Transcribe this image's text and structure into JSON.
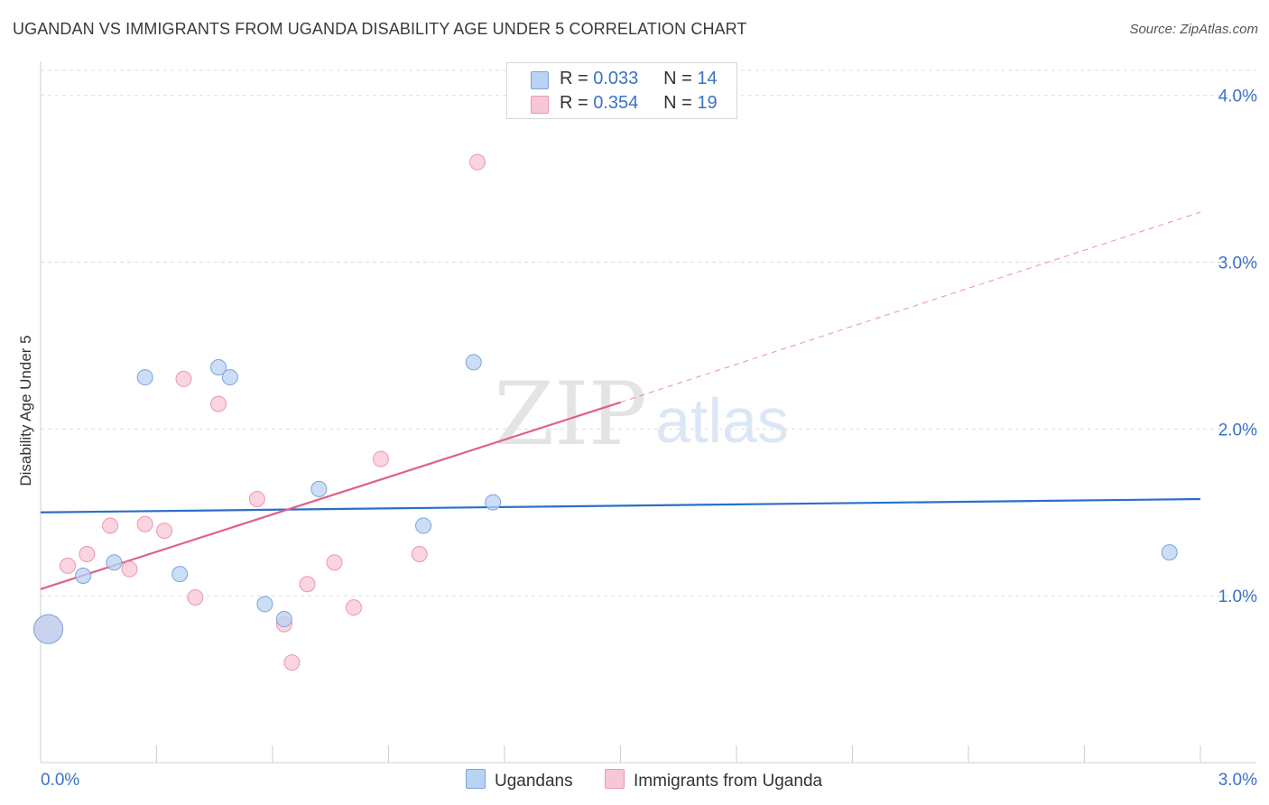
{
  "title": "UGANDAN VS IMMIGRANTS FROM UGANDA DISABILITY AGE UNDER 5 CORRELATION CHART",
  "source": "Source: ZipAtlas.com",
  "watermark": {
    "zip": "ZIP",
    "atlas": "atlas"
  },
  "colors": {
    "blue_fill": "#b9d3f3",
    "blue_stroke": "#7ba3db",
    "blue_line": "#2a6fc9",
    "pink_fill": "#f8c6d4",
    "pink_stroke": "#ea98b1",
    "pink_line": "#e0608a",
    "tick_text": "#3a72c8",
    "grid": "#dddddd"
  },
  "legend": {
    "rows": [
      {
        "r_label": "R =",
        "r_value": "0.033",
        "n_label": "N =",
        "n_value": "14"
      },
      {
        "r_label": "R =",
        "r_value": "0.354",
        "n_label": "N =",
        "n_value": "19"
      }
    ]
  },
  "chart_data": {
    "type": "scatter",
    "title": "UGANDAN VS IMMIGRANTS FROM UGANDA DISABILITY AGE UNDER 5 CORRELATION CHART",
    "xlabel": "",
    "ylabel": "Disability Age Under 5",
    "xlim": [
      0.0,
      3.0
    ],
    "ylim": [
      0.0,
      4.15
    ],
    "x_tick_labels": [
      "0.0%",
      "3.0%"
    ],
    "y_ticks": [
      1.0,
      2.0,
      3.0,
      4.0
    ],
    "y_tick_labels": [
      "1.0%",
      "2.0%",
      "3.0%",
      "4.0%"
    ],
    "grid": true,
    "legend_position": "top-center",
    "series": [
      {
        "name": "Ugandans",
        "color": "#b9d3f3",
        "points": [
          {
            "x": 0.02,
            "y": 0.8,
            "big": true
          },
          {
            "x": 0.11,
            "y": 1.12
          },
          {
            "x": 0.19,
            "y": 1.2
          },
          {
            "x": 0.27,
            "y": 2.31
          },
          {
            "x": 0.36,
            "y": 1.13
          },
          {
            "x": 0.46,
            "y": 2.37
          },
          {
            "x": 0.49,
            "y": 2.31
          },
          {
            "x": 0.58,
            "y": 0.95
          },
          {
            "x": 0.63,
            "y": 0.86
          },
          {
            "x": 0.72,
            "y": 1.64
          },
          {
            "x": 0.99,
            "y": 1.42
          },
          {
            "x": 1.12,
            "y": 2.4
          },
          {
            "x": 1.17,
            "y": 1.56
          },
          {
            "x": 2.92,
            "y": 1.26
          }
        ],
        "trend": {
          "x": [
            0.0,
            3.0
          ],
          "y": [
            1.5,
            1.58
          ],
          "dashed_extension": false
        }
      },
      {
        "name": "Immigrants from Uganda",
        "color": "#f8c6d4",
        "points": [
          {
            "x": 0.02,
            "y": 0.8,
            "big": true
          },
          {
            "x": 0.07,
            "y": 1.18
          },
          {
            "x": 0.12,
            "y": 1.25
          },
          {
            "x": 0.18,
            "y": 1.42
          },
          {
            "x": 0.23,
            "y": 1.16
          },
          {
            "x": 0.27,
            "y": 1.43
          },
          {
            "x": 0.32,
            "y": 1.39
          },
          {
            "x": 0.37,
            "y": 2.3
          },
          {
            "x": 0.4,
            "y": 0.99
          },
          {
            "x": 0.46,
            "y": 2.15
          },
          {
            "x": 0.56,
            "y": 1.58
          },
          {
            "x": 0.63,
            "y": 0.83
          },
          {
            "x": 0.65,
            "y": 0.6
          },
          {
            "x": 0.69,
            "y": 1.07
          },
          {
            "x": 0.76,
            "y": 1.2
          },
          {
            "x": 0.81,
            "y": 0.93
          },
          {
            "x": 0.88,
            "y": 1.82
          },
          {
            "x": 0.98,
            "y": 1.25
          },
          {
            "x": 1.13,
            "y": 3.6
          }
        ],
        "trend": {
          "x": [
            0.0,
            1.5
          ],
          "y": [
            1.04,
            2.16
          ],
          "dashed_to": {
            "x": 3.0,
            "y": 3.3
          }
        }
      }
    ]
  },
  "bottom_legend": [
    {
      "label": "Ugandans"
    },
    {
      "label": "Immigrants from Uganda"
    }
  ]
}
